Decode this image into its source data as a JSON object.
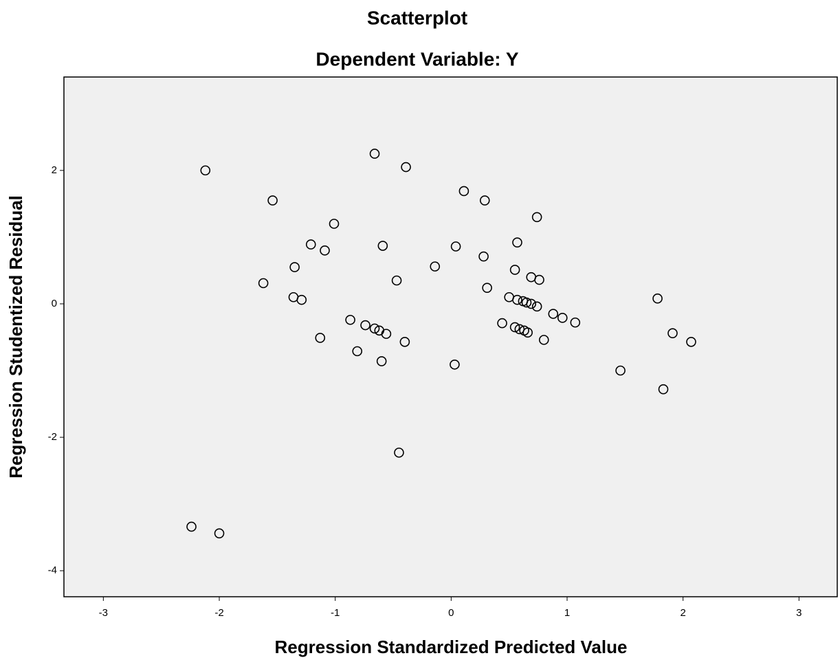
{
  "chart_data": {
    "type": "scatter",
    "title": "Scatterplot",
    "subtitle": "Dependent Variable: Y",
    "x_label": "Regression Standardized Predicted Value",
    "y_label": "Regression Studentized Residual",
    "x": [
      -2.12,
      -0.66,
      -0.39,
      -1.54,
      0.11,
      0.29,
      0.74,
      -1.01,
      -1.21,
      -1.09,
      -0.59,
      0.04,
      0.57,
      0.28,
      -1.35,
      -0.14,
      0.55,
      -1.62,
      -0.47,
      0.69,
      0.76,
      0.31,
      -1.36,
      -1.29,
      0.5,
      0.57,
      0.62,
      0.65,
      0.69,
      0.74,
      1.78,
      -0.87,
      -0.74,
      -0.66,
      -0.62,
      -0.56,
      0.88,
      0.96,
      1.07,
      0.44,
      0.55,
      0.59,
      0.63,
      0.66,
      -1.13,
      -0.4,
      0.8,
      1.91,
      2.07,
      -0.81,
      -0.6,
      0.03,
      1.46,
      1.83,
      -0.45,
      -2.24,
      -2.0
    ],
    "values": [
      2.0,
      2.25,
      2.05,
      1.55,
      1.69,
      1.55,
      1.3,
      1.2,
      0.89,
      0.8,
      0.87,
      0.86,
      0.92,
      0.71,
      0.55,
      0.56,
      0.51,
      0.31,
      0.35,
      0.4,
      0.36,
      0.24,
      0.1,
      0.06,
      0.1,
      0.06,
      0.04,
      0.02,
      0.0,
      -0.04,
      0.08,
      -0.24,
      -0.32,
      -0.37,
      -0.4,
      -0.45,
      -0.15,
      -0.21,
      -0.28,
      -0.29,
      -0.35,
      -0.38,
      -0.4,
      -0.43,
      -0.51,
      -0.57,
      -0.54,
      -0.44,
      -0.57,
      -0.71,
      -0.86,
      -0.91,
      -1.0,
      -1.28,
      -2.23,
      -3.34,
      -3.44
    ],
    "color": "#000000",
    "background": "#f0f0f0",
    "xlim": [
      -3.34,
      3.33
    ],
    "xticks": [
      -3,
      -2,
      -1,
      0,
      1,
      2,
      3
    ],
    "ylim": [
      -4.39,
      3.4
    ],
    "yticks": [
      -4,
      -2,
      0,
      2
    ],
    "grid": false
  }
}
